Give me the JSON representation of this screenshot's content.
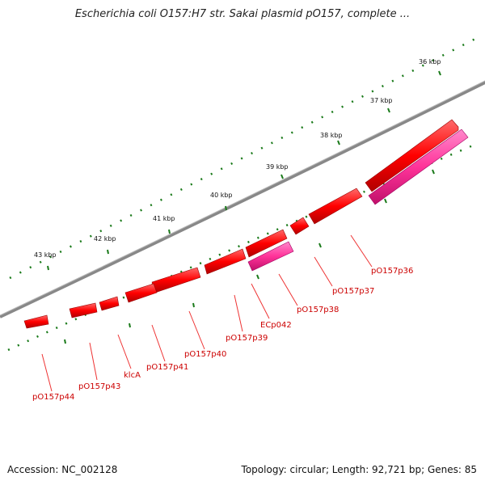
{
  "title": "Escherichia coli O157:H7 str. Sakai plasmid pO157, complete ...",
  "footer": {
    "accession": "Accession: NC_002128",
    "summary": "Topology: circular; Length: 92,721 bp; Genes: 85"
  },
  "kbp_labels": [
    "36 kbp",
    "37 kbp",
    "38 kbp",
    "39 kbp",
    "40 kbp",
    "41 kbp",
    "42 kbp",
    "43 kbp"
  ],
  "gene_labels": [
    "pO157p36",
    "pO157p37",
    "pO157p38",
    "ECp042",
    "pO157p39",
    "pO157p40",
    "pO157p41",
    "klcA",
    "pO157p43",
    "pO157p44"
  ],
  "colors": {
    "gene": "#ff0000",
    "rna": "#ff3399",
    "backbone": "#888888",
    "ticks": "#1a7a1a",
    "label": "#cc0000"
  }
}
